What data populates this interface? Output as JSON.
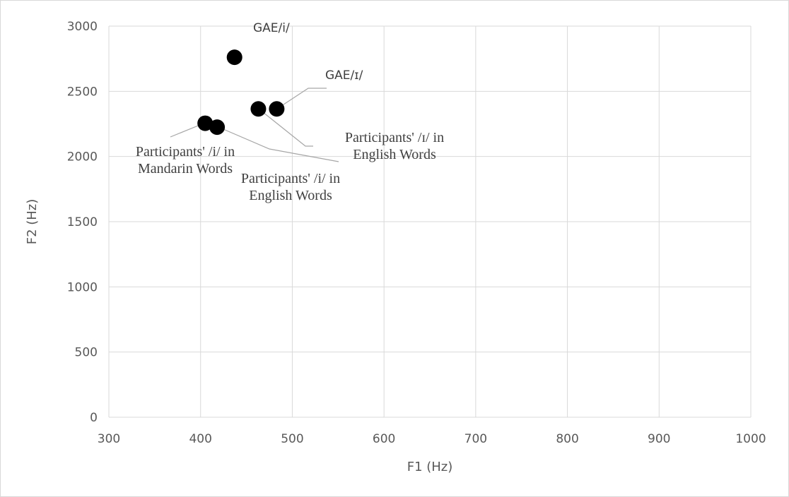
{
  "chart_data": {
    "type": "scatter",
    "xlabel": "F1 (Hz)",
    "ylabel": "F2 (Hz)",
    "xlim": [
      300,
      1000
    ],
    "ylim": [
      0,
      3000
    ],
    "xticks": [
      300,
      400,
      500,
      600,
      700,
      800,
      900,
      1000
    ],
    "yticks": [
      0,
      500,
      1000,
      1500,
      2000,
      2500,
      3000
    ],
    "grid": true,
    "legend": "none",
    "marker_color": "#000000",
    "points": [
      {
        "x": 437,
        "y": 2761,
        "label": [
          "GAE/i/"
        ]
      },
      {
        "x": 483,
        "y": 2365,
        "label": [
          "GAE/ɪ/"
        ]
      },
      {
        "x": 463,
        "y": 2365,
        "label": [
          "Participants' /ɪ/ in",
          "English Words"
        ]
      },
      {
        "x": 405,
        "y": 2255,
        "label": [
          "Participants' /i/ in",
          "Mandarin Words"
        ]
      },
      {
        "x": 418,
        "y": 2225,
        "label": [
          "Participants' /i/ in",
          "English Words"
        ]
      }
    ]
  }
}
